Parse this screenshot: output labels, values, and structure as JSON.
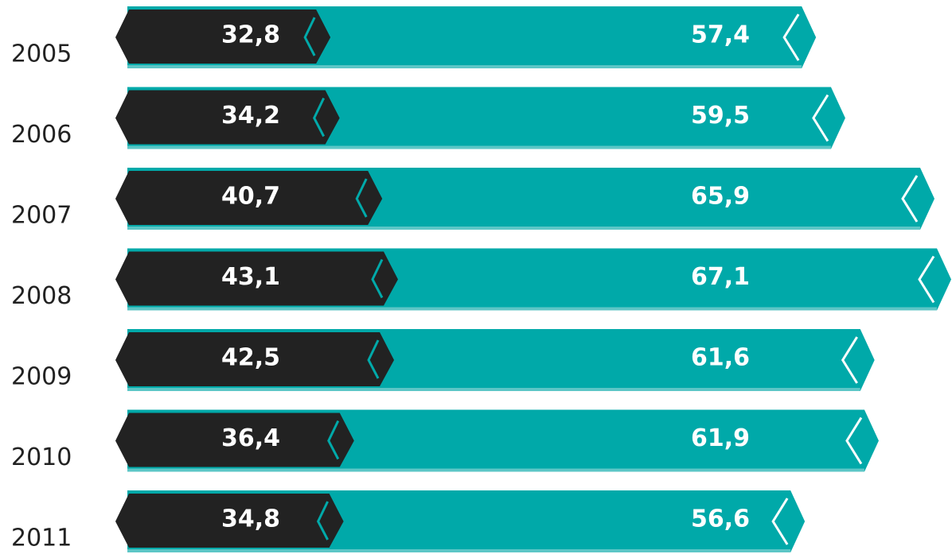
{
  "chart_data": {
    "type": "bar",
    "categories": [
      "2005",
      "2006",
      "2007",
      "2008",
      "2009",
      "2010",
      "2011"
    ],
    "series": [
      {
        "color": "#222222",
        "values": [
          32.8,
          34.2,
          40.7,
          43.1,
          42.5,
          36.4,
          34.8
        ],
        "value_labels": [
          "32,8",
          "34,2",
          "40,7",
          "43,1",
          "42,5",
          "36,4",
          "34,8"
        ]
      },
      {
        "color": "#00a9a9",
        "values": [
          57.4,
          59.5,
          65.9,
          67.1,
          61.6,
          61.9,
          56.6
        ],
        "value_labels": [
          "57,4",
          "59,5",
          "65,9",
          "67,1",
          "61,6",
          "61,9",
          "56,6"
        ]
      }
    ]
  }
}
